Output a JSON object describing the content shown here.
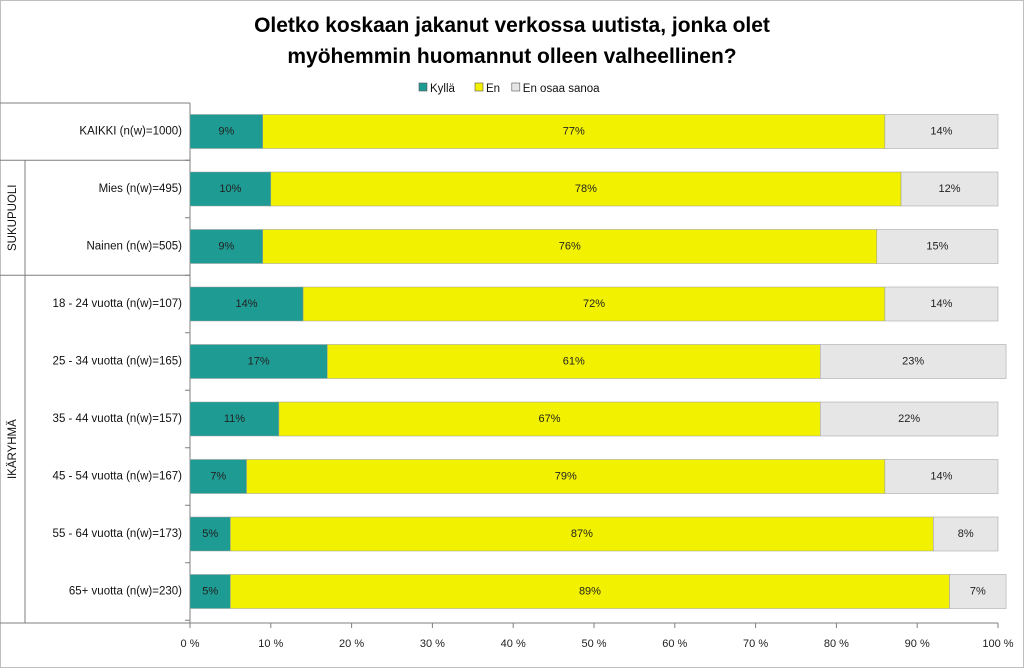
{
  "chart_data": {
    "type": "bar",
    "orientation": "horizontal",
    "stacked": "percent",
    "title_lines": [
      "Oletko koskaan jakanut verkossa uutista, jonka olet",
      "myöhemmin huomannut olleen valheellinen?"
    ],
    "legend_position": "top",
    "categories": [
      "KAIKKI (n(w)=1000)",
      "Mies (n(w)=495)",
      "Nainen (n(w)=505)",
      "18 - 24 vuotta (n(w)=107)",
      "25 - 34 vuotta (n(w)=165)",
      "35 - 44 vuotta (n(w)=157)",
      "45 - 54 vuotta (n(w)=167)",
      "55 - 64 vuotta (n(w)=173)",
      "65+ vuotta (n(w)=230)"
    ],
    "groups": [
      {
        "label": "",
        "from": 0,
        "to": 0
      },
      {
        "label": "SUKUPUOLI",
        "from": 1,
        "to": 2
      },
      {
        "label": "IKÄRYHMÄ",
        "from": 3,
        "to": 8
      }
    ],
    "series": [
      {
        "name": "Kyllä",
        "color": "#1e9b93",
        "values": [
          9,
          10,
          9,
          14,
          17,
          11,
          7,
          5,
          5
        ],
        "labels": [
          "9%",
          "10%",
          "9%",
          "14%",
          "17%",
          "11%",
          "7%",
          "5%",
          "5%"
        ]
      },
      {
        "name": "En",
        "color": "#f2f200",
        "values": [
          77,
          78,
          76,
          72,
          61,
          67,
          79,
          87,
          89
        ],
        "labels": [
          "77%",
          "78%",
          "76%",
          "72%",
          "61%",
          "67%",
          "79%",
          "87%",
          "89%"
        ]
      },
      {
        "name": "En osaa sanoa",
        "color": "#e6e6e6",
        "values": [
          14,
          12,
          15,
          14,
          23,
          22,
          14,
          8,
          7
        ],
        "labels": [
          "14%",
          "12%",
          "15%",
          "14%",
          "23%",
          "22%",
          "14%",
          "8%",
          "7%"
        ]
      }
    ],
    "xlim": [
      0,
      100
    ],
    "xticks": [
      "0 %",
      "10 %",
      "20 %",
      "30 %",
      "40 %",
      "50 %",
      "60 %",
      "70 %",
      "80 %",
      "90 %",
      "100 %"
    ],
    "grid": false
  }
}
